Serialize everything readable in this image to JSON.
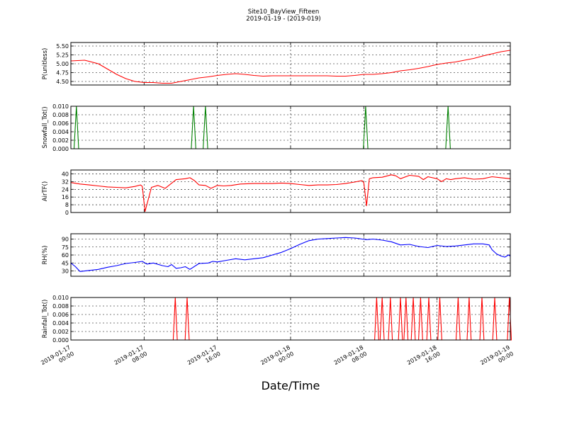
{
  "chart_data": {
    "type": "line",
    "title": "Site10_BayView_Fifteen",
    "subtitle": "2019-01-19 - (2019-019)",
    "xlabel": "Date/Time",
    "x_ticks": [
      {
        "hour": 0,
        "line1": "2019-01-17",
        "line2": "00:00"
      },
      {
        "hour": 8,
        "line1": "2019-01-17",
        "line2": "08:00"
      },
      {
        "hour": 16,
        "line1": "2019-01-17",
        "line2": "16:00"
      },
      {
        "hour": 24,
        "line1": "2019-01-18",
        "line2": "00:00"
      },
      {
        "hour": 32,
        "line1": "2019-01-18",
        "line2": "08:00"
      },
      {
        "hour": 40,
        "line1": "2019-01-18",
        "line2": "16:00"
      },
      {
        "hour": 48,
        "line1": "2019-01-19",
        "line2": "00:00"
      }
    ],
    "xlim": [
      "2019-01-17 00:00",
      "2019-01-19 00:00"
    ],
    "grid": true,
    "panels": [
      {
        "ylabel": "P(unitless)",
        "color": "#ff0000",
        "ylim": [
          4.4,
          5.6
        ],
        "yticks": [
          "4.50",
          "4.75",
          "5.00",
          "5.25",
          "5.50"
        ],
        "ytick_values": [
          4.5,
          4.75,
          5.0,
          5.25,
          5.5
        ],
        "x_hours": [
          0,
          1.5,
          3,
          4,
          5,
          6,
          7,
          8,
          9,
          10,
          11,
          12,
          13,
          14,
          15,
          16,
          17,
          18,
          19,
          20,
          21,
          22,
          23,
          24,
          25,
          26,
          27,
          28,
          29,
          30,
          31,
          32,
          33,
          34,
          35,
          36,
          37,
          38,
          39,
          40,
          41,
          42,
          43,
          44,
          45,
          46,
          47,
          48
        ],
        "values": [
          5.08,
          5.1,
          5.0,
          4.85,
          4.7,
          4.58,
          4.5,
          4.47,
          4.47,
          4.45,
          4.45,
          4.5,
          4.55,
          4.6,
          4.63,
          4.67,
          4.7,
          4.72,
          4.7,
          4.67,
          4.65,
          4.66,
          4.66,
          4.66,
          4.66,
          4.66,
          4.66,
          4.66,
          4.65,
          4.65,
          4.67,
          4.7,
          4.7,
          4.72,
          4.75,
          4.8,
          4.83,
          4.87,
          4.92,
          4.98,
          5.02,
          5.05,
          5.1,
          5.15,
          5.22,
          5.28,
          5.34,
          5.38
        ]
      },
      {
        "ylabel": "Snowfall_Tot()",
        "color": "#008000",
        "ylim": [
          0,
          0.01
        ],
        "yticks": [
          "0.000",
          "0.002",
          "0.004",
          "0.006",
          "0.008",
          "0.010"
        ],
        "ytick_values": [
          0,
          0.002,
          0.004,
          0.006,
          0.008,
          0.01
        ],
        "spikes_hours": [
          0.6,
          13.4,
          14.7,
          32.2,
          41.2
        ],
        "spike_value": 0.01,
        "spike_halfwidth_hours": 0.25
      },
      {
        "ylabel": "AirTF()",
        "color": "#ff0000",
        "ylim": [
          0,
          44
        ],
        "yticks": [
          "0",
          "8",
          "16",
          "24",
          "32",
          "40"
        ],
        "ytick_values": [
          0,
          8,
          16,
          24,
          32,
          40
        ],
        "x_hours": [
          0,
          1,
          2,
          3,
          4,
          5,
          6,
          7,
          7.6,
          7.8,
          8.1,
          8.8,
          9.5,
          10.3,
          11.5,
          12.5,
          13,
          13.5,
          14,
          14.7,
          15.3,
          16,
          16.7,
          17.5,
          18.5,
          20,
          22,
          23,
          24,
          25,
          26,
          27,
          28,
          29,
          30,
          31,
          31.8,
          32.0,
          32.3,
          32.6,
          33,
          34,
          35,
          35.5,
          36,
          37,
          38,
          38.5,
          39,
          40,
          40.5,
          41,
          41.5,
          42,
          43,
          44,
          45,
          46,
          47,
          48
        ],
        "values": [
          31,
          29.5,
          28.5,
          27.5,
          26.5,
          26,
          25.5,
          27,
          28.5,
          27,
          1,
          26,
          28,
          25,
          34,
          35,
          36,
          33,
          28.5,
          28,
          25,
          28,
          27.5,
          28,
          29.5,
          30,
          30,
          30.5,
          30,
          29,
          28,
          28.5,
          28.5,
          29,
          30,
          31.5,
          33,
          31,
          7,
          35,
          36,
          36.5,
          39,
          38,
          35,
          38.5,
          37.5,
          34,
          37,
          35,
          32,
          35,
          34,
          35,
          36,
          34.5,
          35,
          37,
          36,
          35
        ]
      },
      {
        "ylabel": "RH(%)",
        "color": "#0000ff",
        "ylim": [
          20,
          100
        ],
        "yticks": [
          "30",
          "45",
          "60",
          "75",
          "90"
        ],
        "ytick_values": [
          30,
          45,
          60,
          75,
          90
        ],
        "x_hours": [
          0,
          0.5,
          1,
          2,
          3,
          4,
          5,
          6,
          7,
          7.8,
          8.3,
          9,
          10,
          10.6,
          11,
          11.5,
          12,
          12.5,
          13,
          14,
          15,
          15.5,
          16,
          17,
          18,
          19,
          20,
          21,
          22,
          23,
          24,
          25,
          26,
          27,
          28,
          29,
          30,
          31,
          31.8,
          32.3,
          33,
          34,
          35,
          36,
          37,
          38,
          39,
          40,
          41,
          42,
          43,
          44,
          45,
          45.7,
          46,
          46.5,
          47,
          47.4,
          47.8,
          48
        ],
        "values": [
          45,
          38,
          29,
          31,
          33,
          37,
          40,
          44,
          46,
          48,
          43,
          45,
          40,
          38,
          42,
          35,
          36,
          38,
          33,
          44,
          45,
          48,
          47,
          50,
          53,
          51,
          53,
          55,
          60,
          65,
          72,
          80,
          87,
          90,
          91,
          92,
          93,
          92,
          90,
          89,
          90,
          88,
          85,
          79,
          80,
          76,
          74,
          78,
          76,
          77,
          79,
          81,
          81,
          79,
          70,
          62,
          58,
          56,
          60,
          58
        ]
      },
      {
        "ylabel": "Rainfall_Tot()",
        "color": "#ff0000",
        "ylim": [
          0,
          0.01
        ],
        "yticks": [
          "0.000",
          "0.002",
          "0.004",
          "0.006",
          "0.008",
          "0.010"
        ],
        "ytick_values": [
          0,
          0.002,
          0.004,
          0.006,
          0.008,
          0.01
        ],
        "spikes_hours": [
          11.4,
          12.7,
          33.4,
          34.0,
          34.9,
          36.0,
          36.6,
          37.4,
          38.2,
          39.1,
          40.3,
          42.3,
          43.5,
          44.9,
          46.3,
          47.9
        ],
        "spike_value": 0.01,
        "spike_halfwidth_hours": 0.22
      }
    ]
  }
}
